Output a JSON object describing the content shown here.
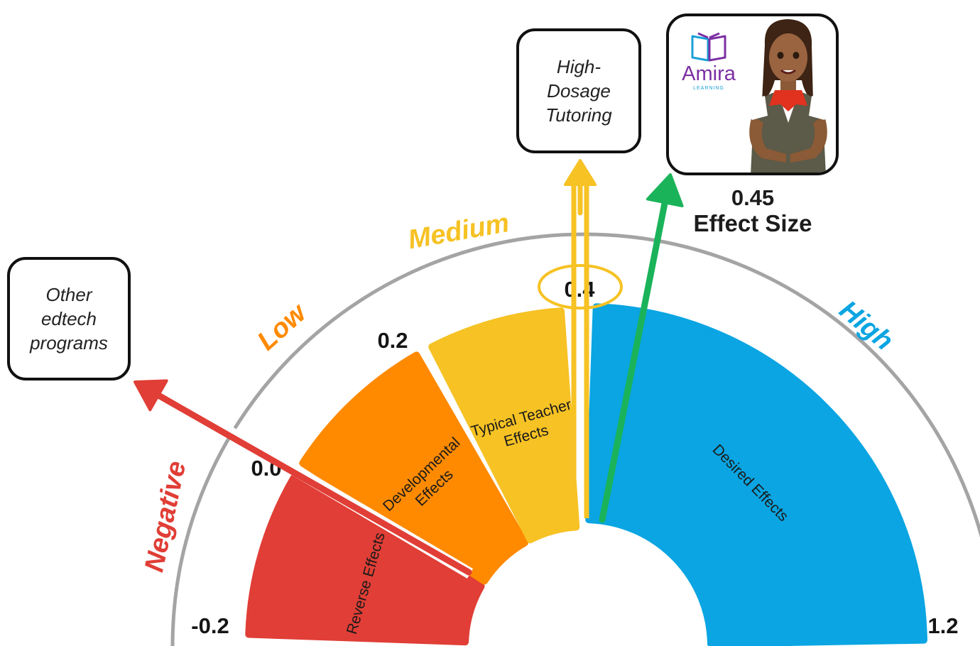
{
  "zones": {
    "negative": {
      "label": "Negative",
      "color": "#e03e36"
    },
    "low": {
      "label": "Low",
      "color": "#ff8a00"
    },
    "medium": {
      "label": "Medium",
      "color": "#f6c224"
    },
    "high": {
      "label": "High",
      "color": "#0aa5e2"
    }
  },
  "segments": [
    {
      "id": "reverse",
      "label": [
        "Reverse Effects"
      ],
      "from": -0.2,
      "to": 0.0,
      "color": "#e03e36"
    },
    {
      "id": "developmental",
      "label": [
        "Developmental",
        "Effects"
      ],
      "from": 0.0,
      "to": 0.2,
      "color": "#ff8a00"
    },
    {
      "id": "typical-teacher",
      "label": [
        "Typical Teacher",
        "Effects"
      ],
      "from": 0.2,
      "to": 0.4,
      "color": "#f6c224"
    },
    {
      "id": "desired",
      "label": [
        "Desired Effects"
      ],
      "from": 0.4,
      "to": 1.2,
      "color": "#0aa5e2"
    }
  ],
  "ticks": [
    {
      "value": -0.2,
      "label": "-0.2"
    },
    {
      "value": 0.0,
      "label": "0.0"
    },
    {
      "value": 0.2,
      "label": "0.2"
    },
    {
      "value": 0.4,
      "label": "0.4"
    },
    {
      "value": 1.2,
      "label": "1.2"
    }
  ],
  "pointers": [
    {
      "id": "other-edtech",
      "target": "Other edtech programs",
      "color": "#e03e36"
    },
    {
      "id": "high-dosage",
      "target": "High-Dosage Tutoring",
      "value": 0.4,
      "color": "#f6c224"
    },
    {
      "id": "amira",
      "target": "Amira",
      "value": 0.45,
      "color": "#1bb35a"
    }
  ],
  "callouts": {
    "other_edtech": [
      "Other",
      "edtech",
      "programs"
    ],
    "high_dosage": [
      "High-",
      "Dosage",
      "Tutoring"
    ]
  },
  "amira": {
    "logo_name": "Amira",
    "logo_sub": "LEARNING",
    "effect_value": "0.45",
    "effect_label": "Effect Size"
  },
  "colors": {
    "logo_purple": "#7b2fa3",
    "logo_blue": "#1aa0d8",
    "gauge_outline": "#9a9a9a"
  }
}
